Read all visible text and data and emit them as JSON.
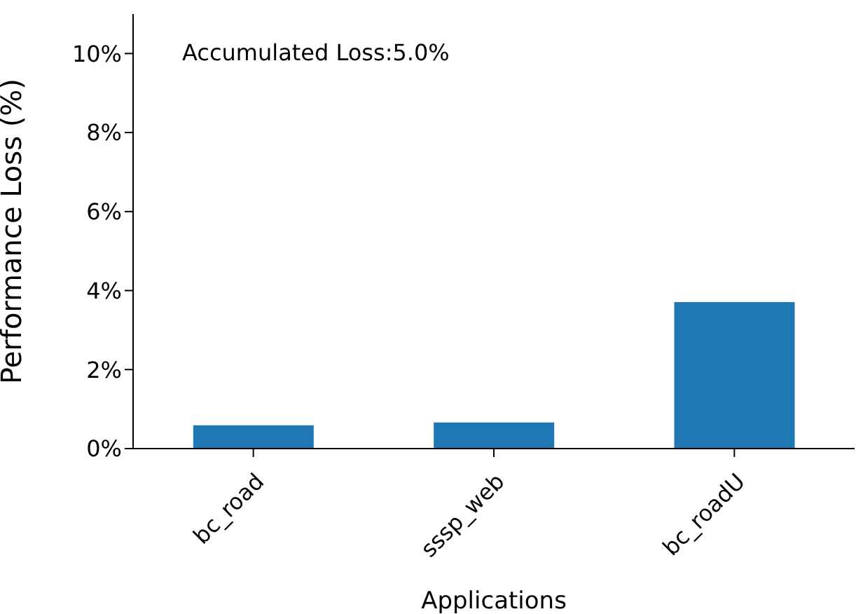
{
  "chart_data": {
    "type": "bar",
    "xlabel": "Applications",
    "ylabel": "Performance Loss (%)",
    "categories": [
      "bc_road",
      "sssp_web",
      "bc_roadU"
    ],
    "values": [
      0.59,
      0.66,
      3.71
    ],
    "color": "#1f77b4",
    "ylim": [
      0,
      11
    ],
    "yticks": [
      {
        "value": 0,
        "label": "0%"
      },
      {
        "value": 2,
        "label": "2%"
      },
      {
        "value": 4,
        "label": "4%"
      },
      {
        "value": 6,
        "label": "6%"
      },
      {
        "value": 8,
        "label": "8%"
      },
      {
        "value": 10,
        "label": "10%"
      }
    ],
    "annotations": [
      "Accumulated Loss:5.0%"
    ],
    "grid": false,
    "legend": false
  }
}
